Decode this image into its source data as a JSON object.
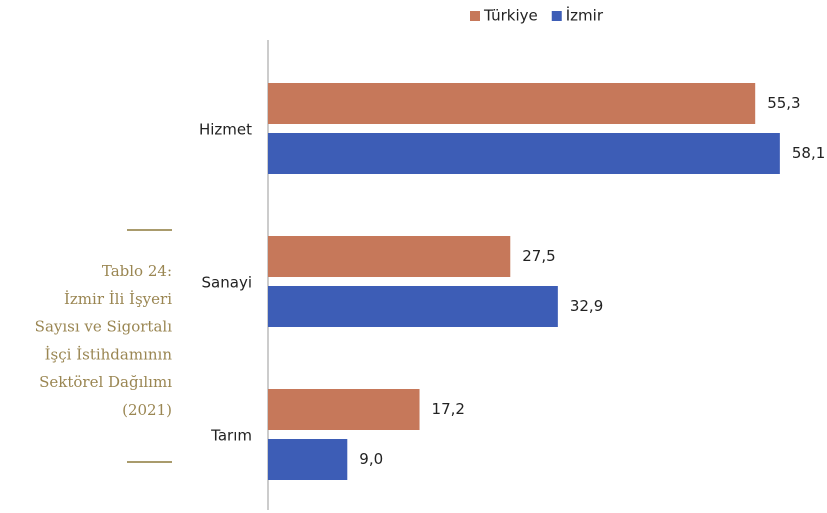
{
  "chart_data": {
    "type": "bar",
    "orientation": "horizontal",
    "categories": [
      "Hizmet",
      "Sanayi",
      "Tarım"
    ],
    "series": [
      {
        "name": "Türkiye",
        "color": "#c6785a",
        "values": [
          55.3,
          27.5,
          17.2
        ],
        "value_labels": [
          "55,3",
          "27,5",
          "17,2"
        ]
      },
      {
        "name": "İzmir",
        "color": "#3d5db6",
        "values": [
          58.1,
          32.9,
          9.0
        ],
        "value_labels": [
          "58,1",
          "32,9",
          "9,0"
        ]
      }
    ],
    "legend": "top",
    "caption": [
      "Tablo 24:",
      "İzmir İli İşyeri",
      "Sayısı ve Sigortalı",
      "İşçi İstihdamının",
      "Sektörel Dağılımı",
      "(2021)"
    ]
  }
}
